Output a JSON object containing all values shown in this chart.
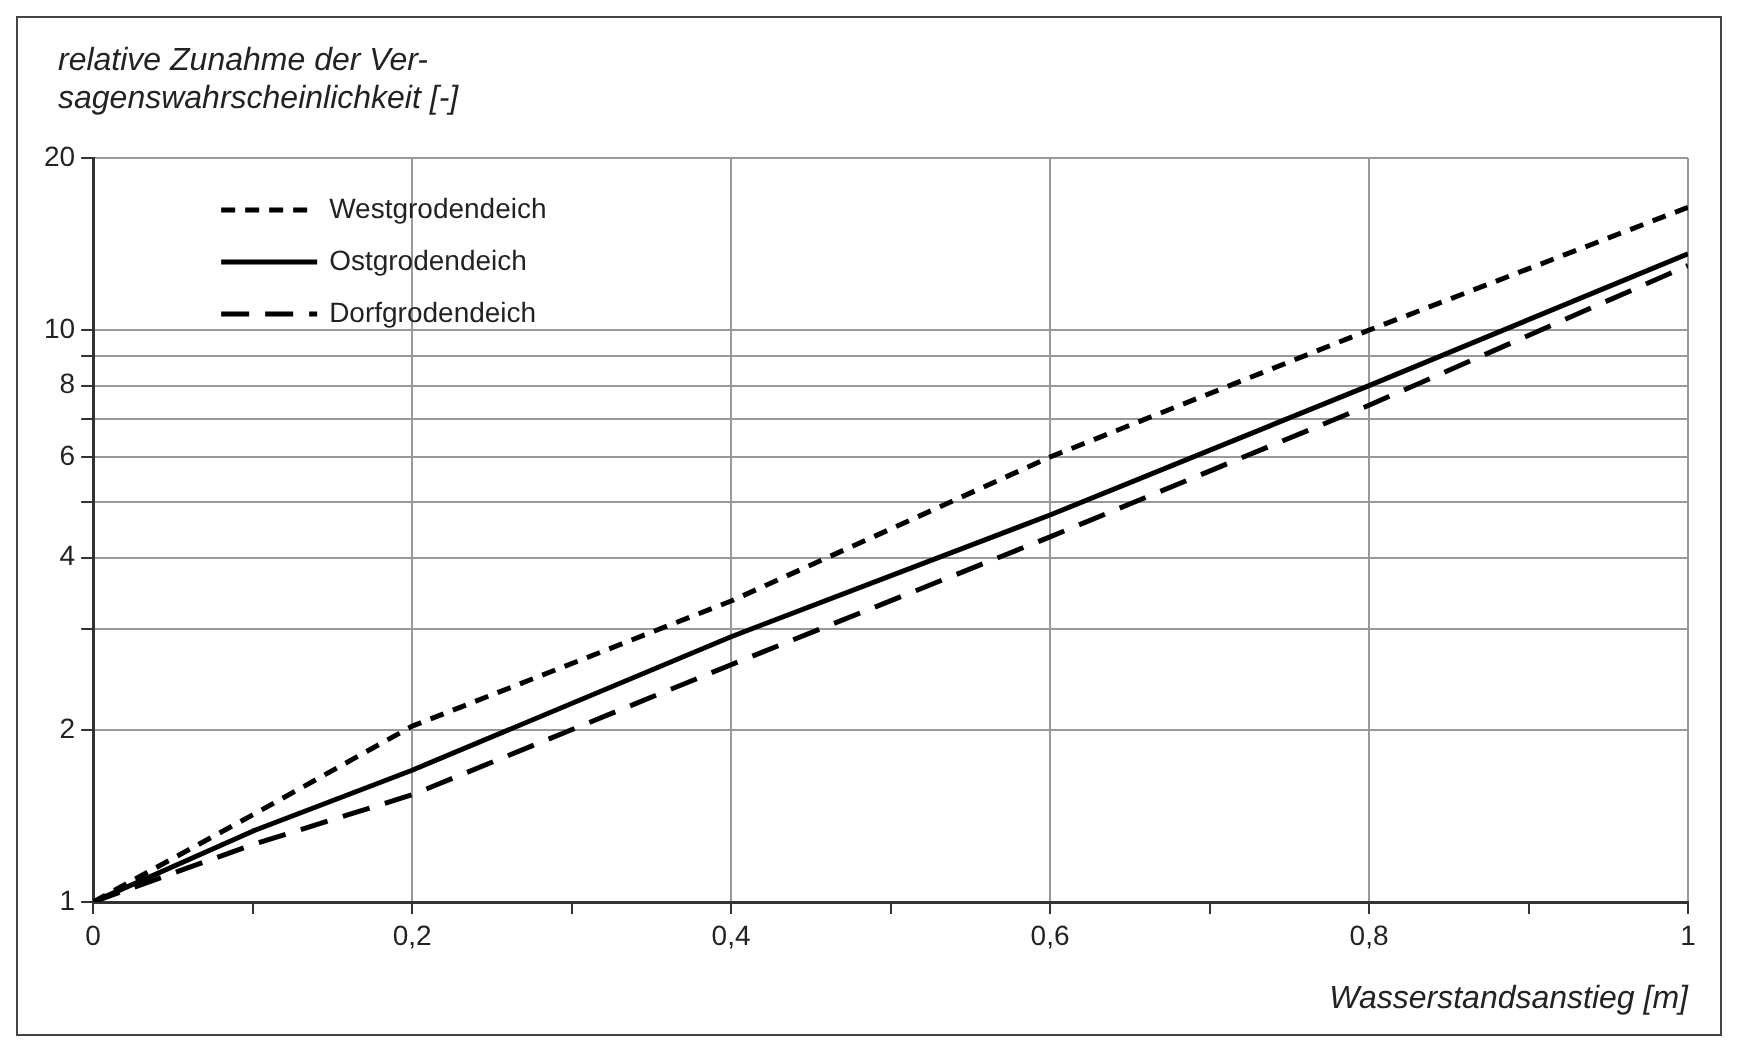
{
  "chart_data": {
    "type": "line",
    "ylabel": "relative Zunahme der Ver-\nsagenswahrscheinlichkeit [-]",
    "xlabel": "Wasserstandsanstieg [m]",
    "x": [
      0,
      0.1,
      0.2,
      0.4,
      0.6,
      0.8,
      1
    ],
    "series": [
      {
        "name": "Westgrodendeich",
        "color": "#000000",
        "line_style": "dashed",
        "values": [
          1,
          1.42,
          2.03,
          3.36,
          6.0,
          10.0,
          16.4
        ]
      },
      {
        "name": "Ostgrodendeich",
        "color": "#000000",
        "line_style": "solid",
        "values": [
          1,
          1.33,
          1.7,
          2.91,
          4.75,
          8.0,
          13.6
        ]
      },
      {
        "name": "Dorfgrodendeich",
        "color": "#000000",
        "line_style": "dashed",
        "values": [
          1,
          1.26,
          1.54,
          2.6,
          4.35,
          7.39,
          12.97
        ]
      }
    ],
    "log": "y",
    "xlim": [
      0,
      1
    ],
    "xticks": [
      0,
      {
        "value": 0.1,
        "label": null
      },
      {
        "value": 0.2,
        "label": "0,2"
      },
      {
        "value": 0.3,
        "label": null
      },
      {
        "value": 0.4,
        "label": "0,4"
      },
      {
        "value": 0.5,
        "label": null
      },
      {
        "value": 0.6,
        "label": "0,6"
      },
      {
        "value": 0.7,
        "label": null
      },
      {
        "value": 0.8,
        "label": "0,8"
      },
      {
        "value": 0.9,
        "label": null
      },
      1
    ],
    "ylim": [
      1,
      20
    ],
    "yticks": [
      1,
      2,
      {
        "value": 3,
        "label": null
      },
      4,
      {
        "value": 5,
        "label": null
      },
      6,
      {
        "value": 7,
        "label": null
      },
      8,
      {
        "value": 9,
        "label": null
      },
      10,
      20
    ],
    "grid": true,
    "legend": "top left",
    "marker": "none"
  }
}
